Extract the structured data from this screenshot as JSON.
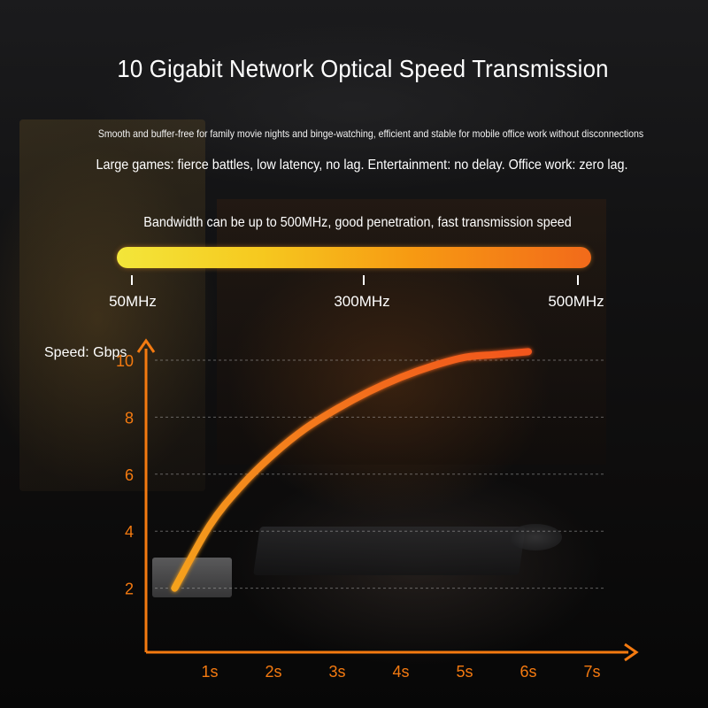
{
  "title": "10 Gigabit Network Optical Speed Transmission",
  "subtitle_line1": "Smooth and buffer-free for family movie nights and binge-watching, efficient and stable for mobile office work without disconnections",
  "subtitle_line2": "Large games: fierce battles, low latency, no lag. Entertainment: no delay. Office work: zero lag.",
  "bandwidth": {
    "label": "Bandwidth can be up to 500MHz, good penetration, fast transmission speed",
    "marks": [
      "50MHz",
      "300MHz",
      "500MHz"
    ],
    "gradient_colors": [
      "#f3e63a",
      "#f79a12",
      "#f26a1a"
    ]
  },
  "chart_data": {
    "type": "line",
    "ylabel": "Speed: Gbps",
    "xlabel": "",
    "x_ticks": [
      "1s",
      "2s",
      "3s",
      "4s",
      "5s",
      "6s",
      "7s"
    ],
    "y_ticks": [
      2,
      4,
      6,
      8,
      10
    ],
    "xlim": [
      0,
      7
    ],
    "ylim": [
      0,
      11
    ],
    "grid": "dashed horizontal",
    "curve": {
      "x": [
        0.45,
        1.0,
        1.5,
        2.0,
        2.5,
        3.0,
        3.5,
        4.0,
        4.5,
        5.0,
        5.5,
        6.0
      ],
      "y": [
        2.0,
        4.2,
        5.6,
        6.7,
        7.6,
        8.3,
        8.9,
        9.4,
        9.8,
        10.1,
        10.2,
        10.3
      ]
    },
    "colors": {
      "axis": "#f47a10",
      "tick_labels": "#f47a10",
      "curve_start": "#f5a21a",
      "curve_end": "#f2561c"
    }
  }
}
